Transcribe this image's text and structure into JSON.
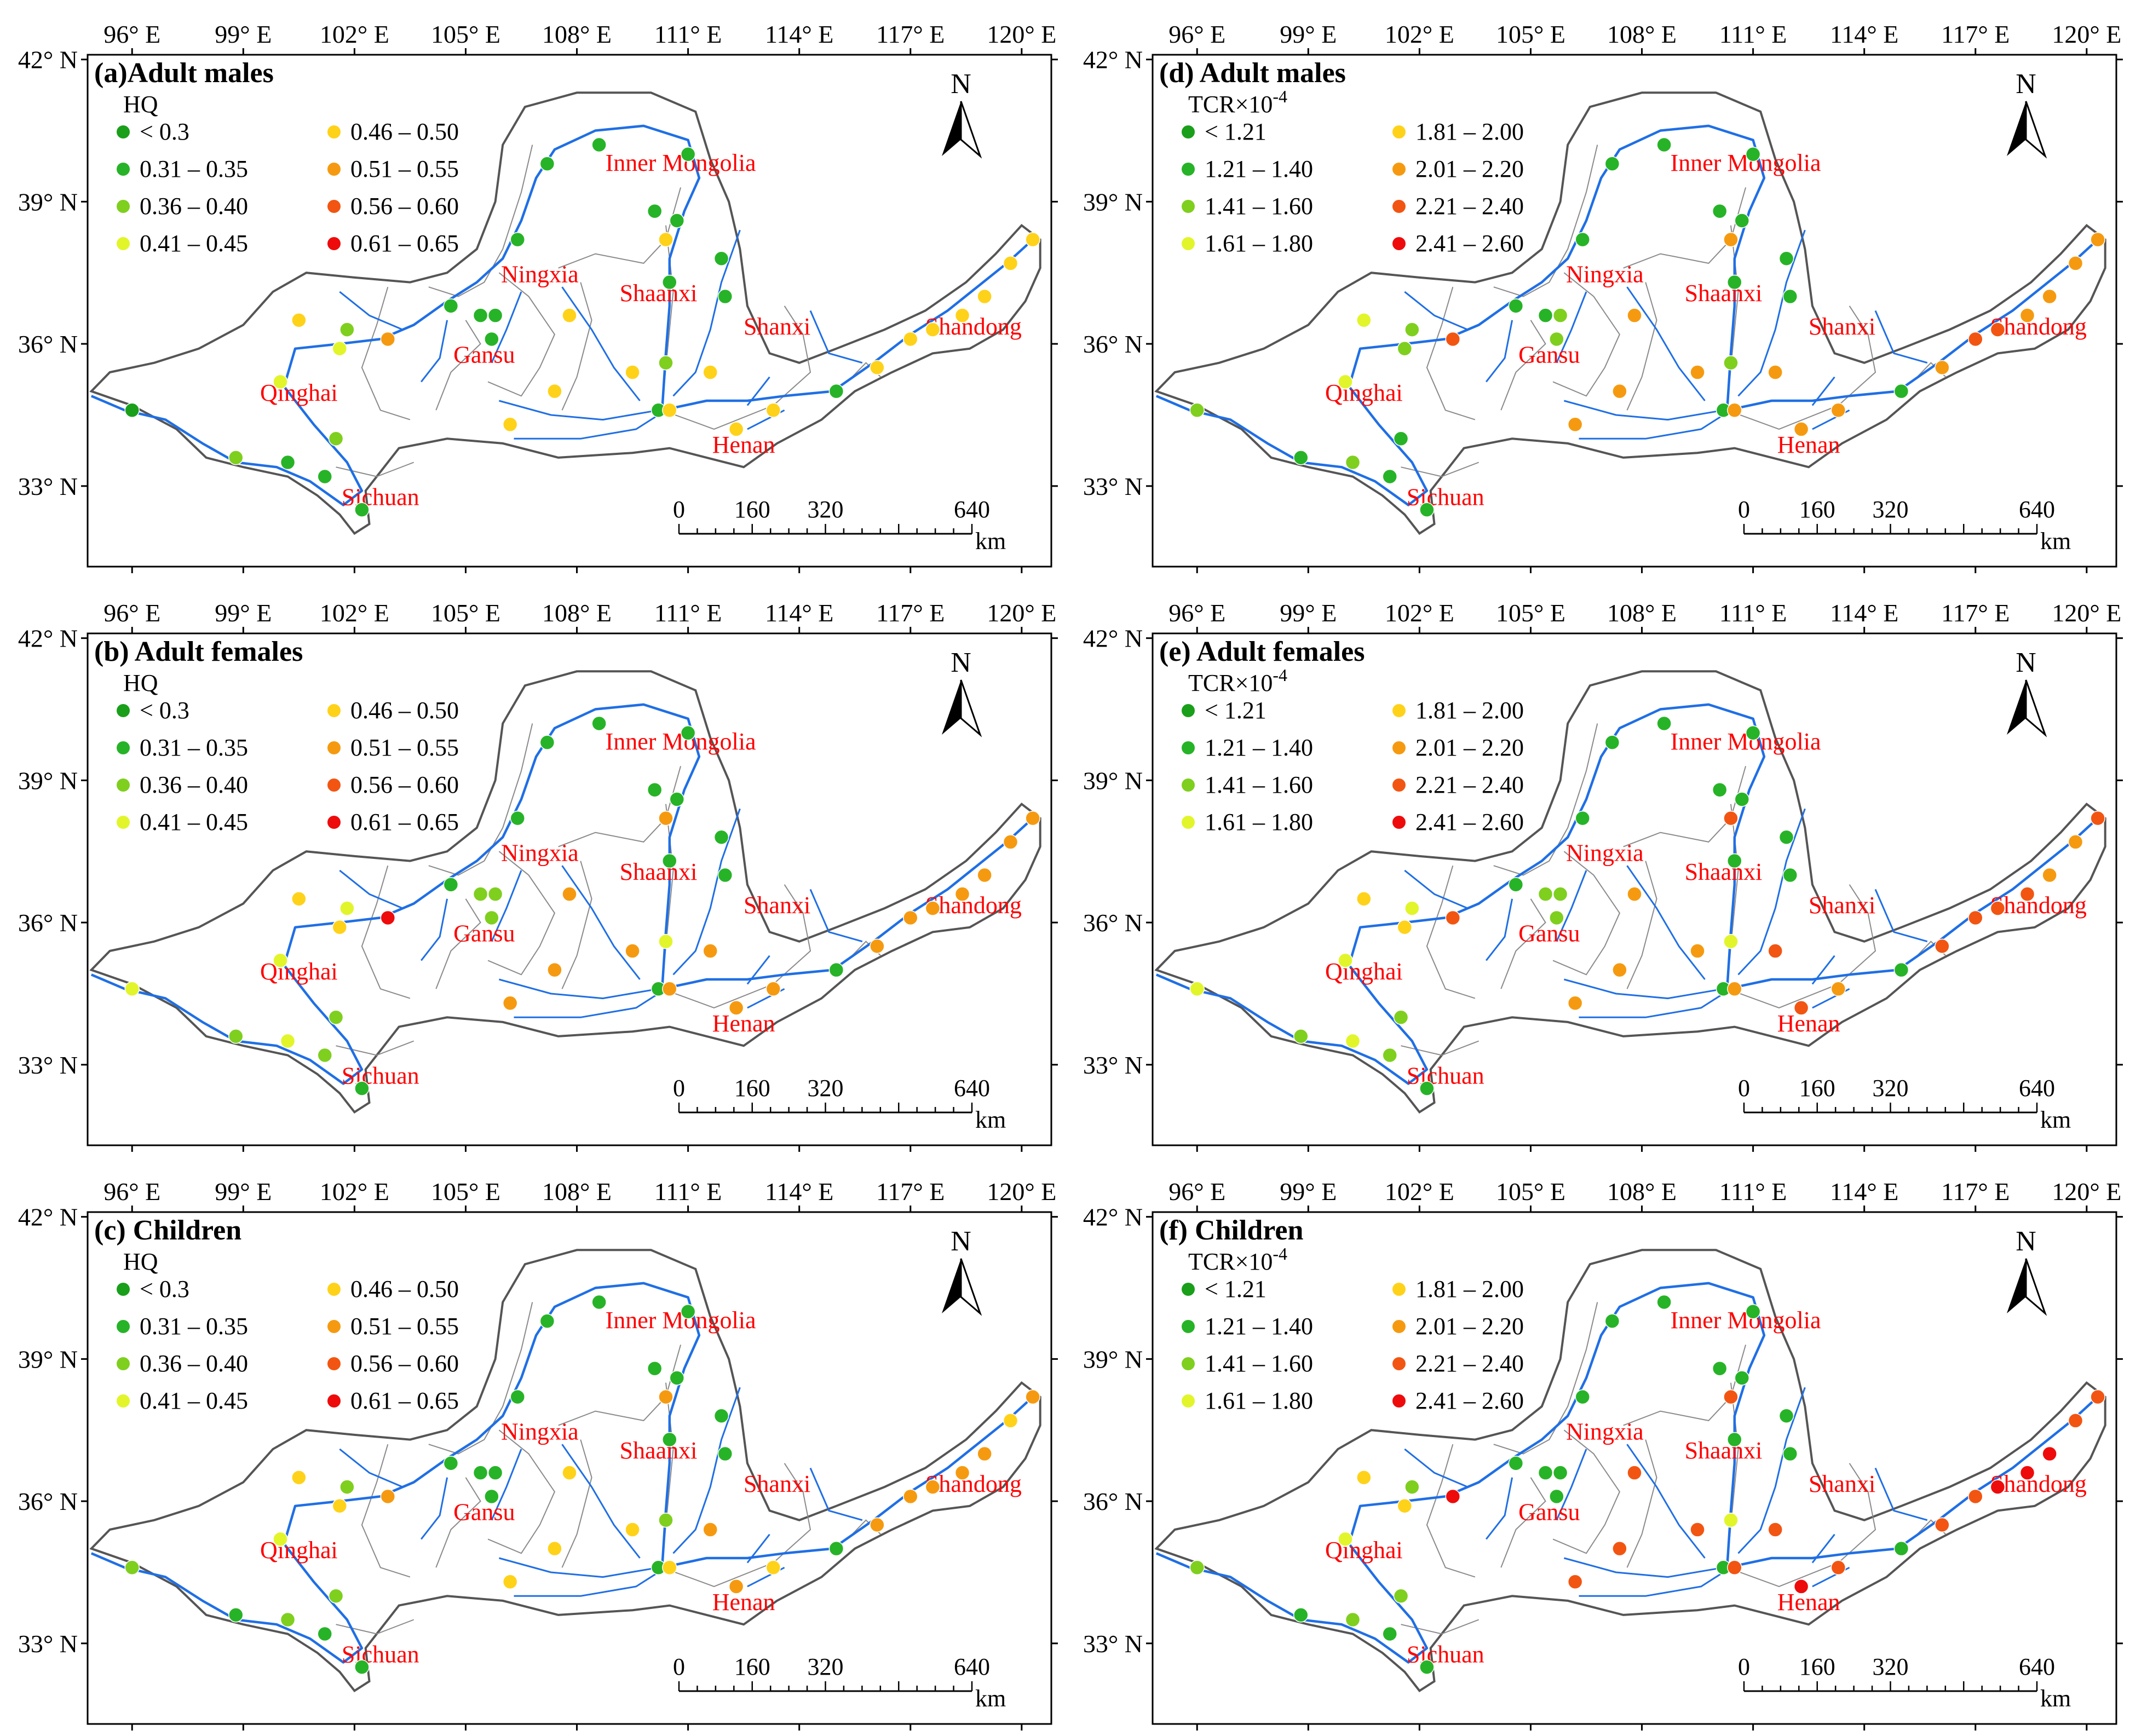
{
  "figure": {
    "lon_ticks": [
      "96° E",
      "99° E",
      "102° E",
      "105° E",
      "108° E",
      "111° E",
      "114° E",
      "117° E",
      "120° E"
    ],
    "lat_ticks": [
      "42° N",
      "39° N",
      "36° N",
      "33° N"
    ],
    "map_extent": {
      "lon_min": 94.8,
      "lon_max": 120.8,
      "lat_min": 31.3,
      "lat_max": 42.1
    },
    "north_label": "N",
    "scale_bar": {
      "ticks": [
        "0",
        "160",
        "320",
        "640"
      ],
      "unit": "km"
    },
    "provinces": [
      {
        "name": "Inner Mongolia",
        "lon": 110.8,
        "lat": 39.65
      },
      {
        "name": "Ningxia",
        "lon": 107.0,
        "lat": 37.3
      },
      {
        "name": "Shaanxi",
        "lon": 110.2,
        "lat": 36.9
      },
      {
        "name": "Shanxi",
        "lon": 113.4,
        "lat": 36.2
      },
      {
        "name": "Shandong",
        "lon": 118.7,
        "lat": 36.2
      },
      {
        "name": "Gansu",
        "lon": 105.5,
        "lat": 35.6
      },
      {
        "name": "Qinghai",
        "lon": 100.5,
        "lat": 34.8
      },
      {
        "name": "Henan",
        "lon": 112.5,
        "lat": 33.7
      },
      {
        "name": "Sichuan",
        "lon": 102.7,
        "lat": 32.6
      }
    ],
    "hq_legend": {
      "title": "HQ",
      "classes": [
        {
          "label": "< 0.3",
          "color": "#1a9f1a"
        },
        {
          "label": "0.31 – 0.35",
          "color": "#27b327"
        },
        {
          "label": "0.36 – 0.40",
          "color": "#7fcf1f"
        },
        {
          "label": "0.41 – 0.45",
          "color": "#e1f52a"
        },
        {
          "label": "0.46 –  0.50",
          "color": "#ffd21a"
        },
        {
          "label": "0.51 –  0.55",
          "color": "#f59a10"
        },
        {
          "label": "0.56 – 0.60",
          "color": "#f25512"
        },
        {
          "label": "0.61 –  0.65",
          "color": "#ee0b0b"
        }
      ]
    },
    "tcr_legend": {
      "title": "TCR×10",
      "title_exponent": "-4",
      "classes": [
        {
          "label": "< 1.21",
          "color": "#1a9f1a"
        },
        {
          "label": "1.21 – 1.40",
          "color": "#27b327"
        },
        {
          "label": "1.41 – 1.60",
          "color": "#7fcf1f"
        },
        {
          "label": "1.61 – 1.80",
          "color": "#e1f52a"
        },
        {
          "label": "1.81 – 2.00",
          "color": "#ffd21a"
        },
        {
          "label": "2.01 – 2.20",
          "color": "#f59a10"
        },
        {
          "label": "2.21 – 2.40",
          "color": "#f25512"
        },
        {
          "label": "2.41 – 2.60",
          "color": "#ee0b0b"
        }
      ]
    },
    "sites": [
      {
        "lon": 96.0,
        "lat": 34.6
      },
      {
        "lon": 98.8,
        "lat": 33.6
      },
      {
        "lon": 100.2,
        "lat": 33.5
      },
      {
        "lon": 101.2,
        "lat": 33.2
      },
      {
        "lon": 102.2,
        "lat": 32.5
      },
      {
        "lon": 101.5,
        "lat": 34.0
      },
      {
        "lon": 100.0,
        "lat": 35.2
      },
      {
        "lon": 100.5,
        "lat": 36.5
      },
      {
        "lon": 101.6,
        "lat": 35.9
      },
      {
        "lon": 101.8,
        "lat": 36.3
      },
      {
        "lon": 102.9,
        "lat": 36.1
      },
      {
        "lon": 104.6,
        "lat": 36.8
      },
      {
        "lon": 105.4,
        "lat": 36.6
      },
      {
        "lon": 105.8,
        "lat": 36.6
      },
      {
        "lon": 105.7,
        "lat": 36.1
      },
      {
        "lon": 106.4,
        "lat": 38.2
      },
      {
        "lon": 107.2,
        "lat": 39.8
      },
      {
        "lon": 108.6,
        "lat": 40.2
      },
      {
        "lon": 111.0,
        "lat": 40.0
      },
      {
        "lon": 110.1,
        "lat": 38.8
      },
      {
        "lon": 110.7,
        "lat": 38.6
      },
      {
        "lon": 110.4,
        "lat": 38.2
      },
      {
        "lon": 110.5,
        "lat": 37.3
      },
      {
        "lon": 111.9,
        "lat": 37.8
      },
      {
        "lon": 112.0,
        "lat": 37.0
      },
      {
        "lon": 107.8,
        "lat": 36.6
      },
      {
        "lon": 109.5,
        "lat": 35.4
      },
      {
        "lon": 110.4,
        "lat": 35.6
      },
      {
        "lon": 111.6,
        "lat": 35.4
      },
      {
        "lon": 107.4,
        "lat": 35.0
      },
      {
        "lon": 106.2,
        "lat": 34.3
      },
      {
        "lon": 110.2,
        "lat": 34.6
      },
      {
        "lon": 110.5,
        "lat": 34.6
      },
      {
        "lon": 112.3,
        "lat": 34.2
      },
      {
        "lon": 113.3,
        "lat": 34.6
      },
      {
        "lon": 115.0,
        "lat": 35.0
      },
      {
        "lon": 116.1,
        "lat": 35.5
      },
      {
        "lon": 117.0,
        "lat": 36.1
      },
      {
        "lon": 117.6,
        "lat": 36.3
      },
      {
        "lon": 118.4,
        "lat": 36.6
      },
      {
        "lon": 119.0,
        "lat": 37.0
      },
      {
        "lon": 119.7,
        "lat": 37.7
      },
      {
        "lon": 120.3,
        "lat": 38.2
      }
    ],
    "panels": [
      {
        "title": "(a)Adult males",
        "legend": "hq",
        "classes": [
          0,
          2,
          1,
          1,
          1,
          2,
          3,
          4,
          3,
          2,
          5,
          1,
          1,
          1,
          1,
          1,
          1,
          1,
          1,
          1,
          1,
          4,
          1,
          1,
          1,
          4,
          4,
          2,
          4,
          4,
          4,
          1,
          4,
          4,
          4,
          1,
          4,
          4,
          4,
          4,
          4,
          4,
          4
        ]
      },
      {
        "title": "(b) Adult females",
        "legend": "hq",
        "classes": [
          3,
          2,
          3,
          2,
          1,
          2,
          3,
          4,
          4,
          3,
          7,
          1,
          2,
          2,
          2,
          1,
          1,
          1,
          1,
          1,
          1,
          5,
          1,
          1,
          1,
          5,
          5,
          3,
          5,
          5,
          5,
          1,
          5,
          5,
          5,
          1,
          5,
          5,
          5,
          5,
          5,
          5,
          5
        ]
      },
      {
        "title": "(c) Children",
        "legend": "hq",
        "classes": [
          2,
          1,
          2,
          1,
          1,
          2,
          3,
          4,
          4,
          2,
          5,
          1,
          1,
          1,
          1,
          1,
          1,
          1,
          1,
          1,
          1,
          5,
          1,
          1,
          1,
          4,
          4,
          2,
          5,
          4,
          4,
          1,
          4,
          5,
          4,
          1,
          5,
          5,
          5,
          5,
          5,
          4,
          5
        ]
      },
      {
        "title": "(d)  Adult males",
        "legend": "tcr",
        "classes": [
          2,
          1,
          2,
          1,
          1,
          1,
          3,
          3,
          2,
          2,
          6,
          1,
          1,
          2,
          2,
          1,
          1,
          1,
          1,
          1,
          1,
          5,
          1,
          1,
          1,
          5,
          5,
          2,
          5,
          5,
          5,
          1,
          5,
          5,
          5,
          1,
          5,
          6,
          6,
          5,
          5,
          5,
          5
        ]
      },
      {
        "title": "(e)  Adult females",
        "legend": "tcr",
        "classes": [
          3,
          2,
          3,
          2,
          1,
          2,
          3,
          4,
          4,
          3,
          6,
          1,
          2,
          2,
          2,
          1,
          1,
          1,
          1,
          1,
          1,
          6,
          1,
          1,
          1,
          5,
          5,
          3,
          6,
          5,
          5,
          1,
          5,
          6,
          5,
          1,
          6,
          6,
          6,
          6,
          5,
          5,
          6
        ]
      },
      {
        "title": "(f)  Children",
        "legend": "tcr",
        "classes": [
          2,
          1,
          2,
          1,
          1,
          2,
          3,
          4,
          4,
          2,
          7,
          1,
          1,
          1,
          1,
          1,
          1,
          1,
          1,
          1,
          1,
          6,
          1,
          1,
          1,
          6,
          6,
          3,
          6,
          6,
          6,
          1,
          6,
          7,
          6,
          1,
          6,
          6,
          7,
          7,
          7,
          6,
          6
        ]
      }
    ]
  }
}
